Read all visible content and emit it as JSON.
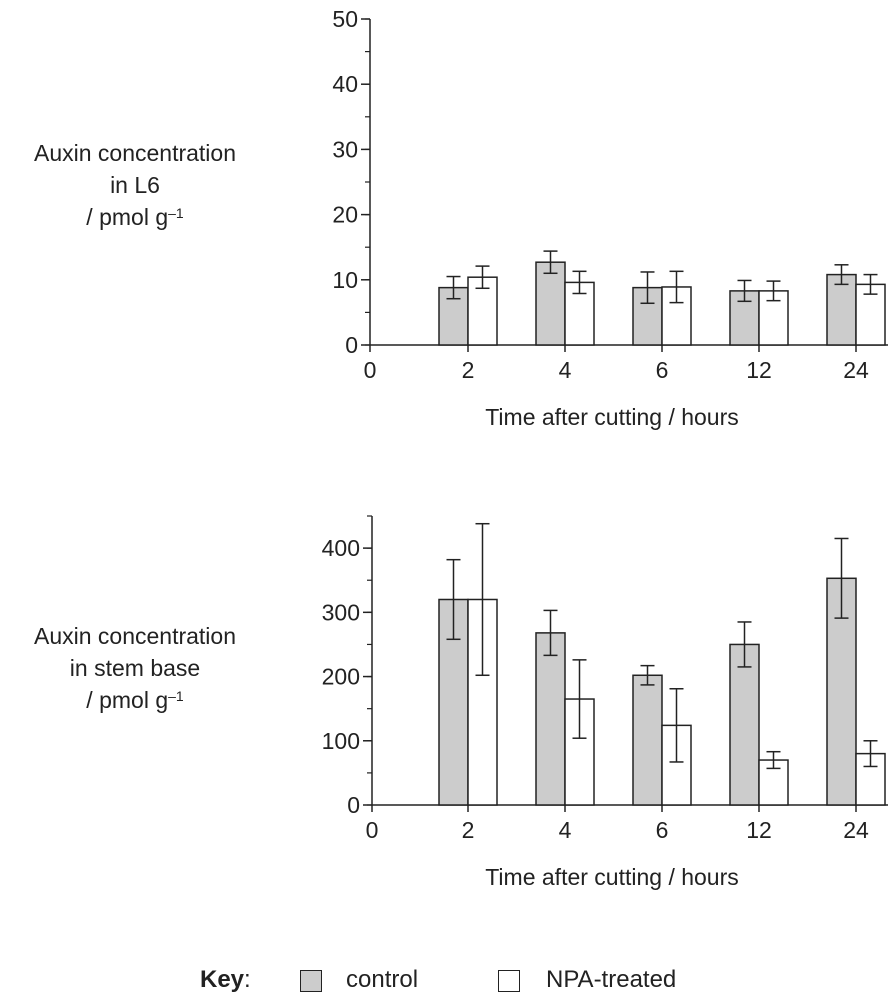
{
  "chart_data": [
    {
      "type": "bar",
      "ylabel_lines": [
        "Auxin concentration",
        "in L6",
        "/ pmol g"
      ],
      "ylabel_sup": "–1",
      "xlabel": "Time after cutting / hours",
      "categories": [
        "2",
        "4",
        "6",
        "12",
        "24"
      ],
      "zero_label": "0",
      "ylim": [
        0,
        50
      ],
      "yticks": [
        "0",
        "10",
        "20",
        "30",
        "40",
        "50"
      ],
      "ytick_values": [
        0,
        10,
        20,
        30,
        40,
        50
      ],
      "minor_step": 5,
      "series": [
        {
          "name": "control",
          "values": [
            8.8,
            12.7,
            8.8,
            8.3,
            10.8
          ],
          "err": [
            1.7,
            1.7,
            2.4,
            1.6,
            1.5
          ]
        },
        {
          "name": "NPA-treated",
          "values": [
            10.4,
            9.6,
            8.9,
            8.3,
            9.3
          ],
          "err": [
            1.7,
            1.7,
            2.4,
            1.5,
            1.5
          ]
        }
      ]
    },
    {
      "type": "bar",
      "ylabel_lines": [
        "Auxin concentration",
        "in stem base",
        "/ pmol g"
      ],
      "ylabel_sup": "–1",
      "xlabel": "Time after cutting / hours",
      "categories": [
        "2",
        "4",
        "6",
        "12",
        "24"
      ],
      "zero_label": "0",
      "ylim": [
        0,
        450
      ],
      "yticks": [
        "0",
        "100",
        "200",
        "300",
        "400"
      ],
      "ytick_values": [
        0,
        100,
        200,
        300,
        400
      ],
      "minor_step": 50,
      "series": [
        {
          "name": "control",
          "values": [
            320,
            268,
            202,
            250,
            353
          ],
          "err": [
            62,
            35,
            15,
            35,
            62
          ]
        },
        {
          "name": "NPA-treated",
          "values": [
            320,
            165,
            124,
            70,
            80
          ],
          "err": [
            118,
            61,
            57,
            13,
            20
          ]
        }
      ]
    }
  ],
  "key": {
    "title": "Key",
    "sep": ":",
    "items": [
      {
        "label": "control",
        "color": "#cccccc"
      },
      {
        "label": "NPA-treated",
        "color": "#ffffff"
      }
    ]
  }
}
